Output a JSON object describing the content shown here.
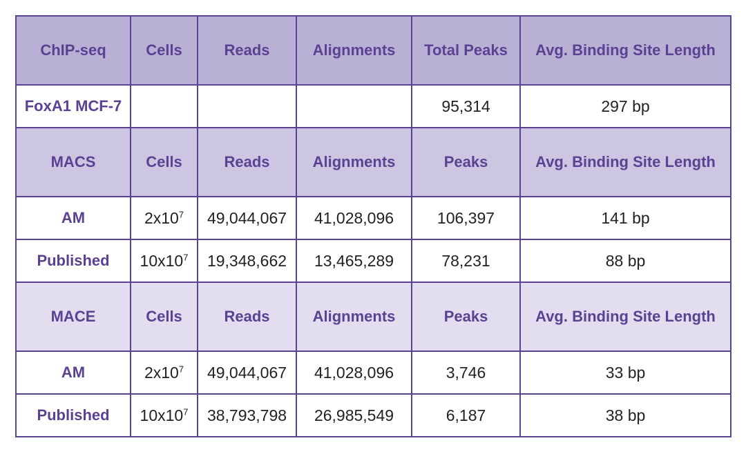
{
  "table": {
    "sections": [
      {
        "header": [
          "ChIP-seq",
          "Cells",
          "Reads",
          "Alignments",
          "Total Peaks",
          "Avg. Binding Site Length"
        ],
        "rows": [
          [
            "FoxA1 MCF-7",
            null,
            null,
            null,
            "95,314",
            "297 bp"
          ]
        ]
      },
      {
        "header": [
          "MACS",
          "Cells",
          "Reads",
          "Alignments",
          "Peaks",
          "Avg. Binding Site Length"
        ],
        "rows": [
          [
            "AM",
            {
              "text": "2x10",
              "sup": "7"
            },
            "49,044,067",
            "41,028,096",
            "106,397",
            "141 bp"
          ],
          [
            "Published",
            {
              "text": "10x10",
              "sup": "7"
            },
            "19,348,662",
            "13,465,289",
            "78,231",
            "88 bp"
          ]
        ]
      },
      {
        "header": [
          "MACE",
          "Cells",
          "Reads",
          "Alignments",
          "Peaks",
          "Avg. Binding Site Length"
        ],
        "rows": [
          [
            "AM",
            {
              "text": "2x10",
              "sup": "7"
            },
            "49,044,067",
            "41,028,096",
            "3,746",
            "33 bp"
          ],
          [
            "Published",
            {
              "text": "10x10",
              "sup": "7"
            },
            "38,793,798",
            "26,985,549",
            "6,187",
            "38 bp"
          ]
        ]
      }
    ]
  }
}
